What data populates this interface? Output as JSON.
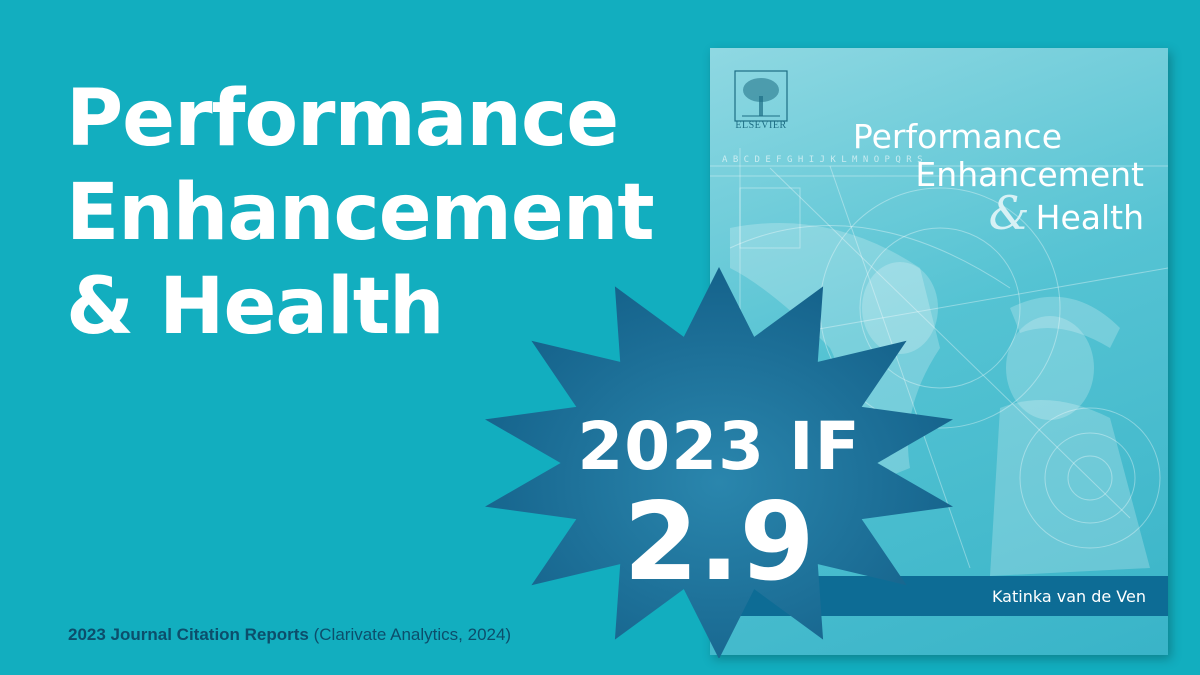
{
  "headline": {
    "line1": "Performance",
    "line2": "Enhancement",
    "line3": "& Health"
  },
  "badge": {
    "label": "2023 IF",
    "value": "2.9"
  },
  "footer": {
    "source_bold": "2023 Journal Citation Reports",
    "source_rest": " (Clarivate Analytics, 2024)"
  },
  "cover": {
    "publisher": "ELSEVIER",
    "title_line1": "Performance",
    "title_line2": "Enhancement",
    "title_amp": "&",
    "title_line3": "Health",
    "author": "Katinka van de Ven",
    "alphabet": "A B C D E F G H I J K L M N O P Q R S"
  },
  "colors": {
    "background": "#12aebf",
    "burst": "#1a78a2",
    "author_band": "#0d6c95",
    "footer_text": "#0c4e6b"
  }
}
